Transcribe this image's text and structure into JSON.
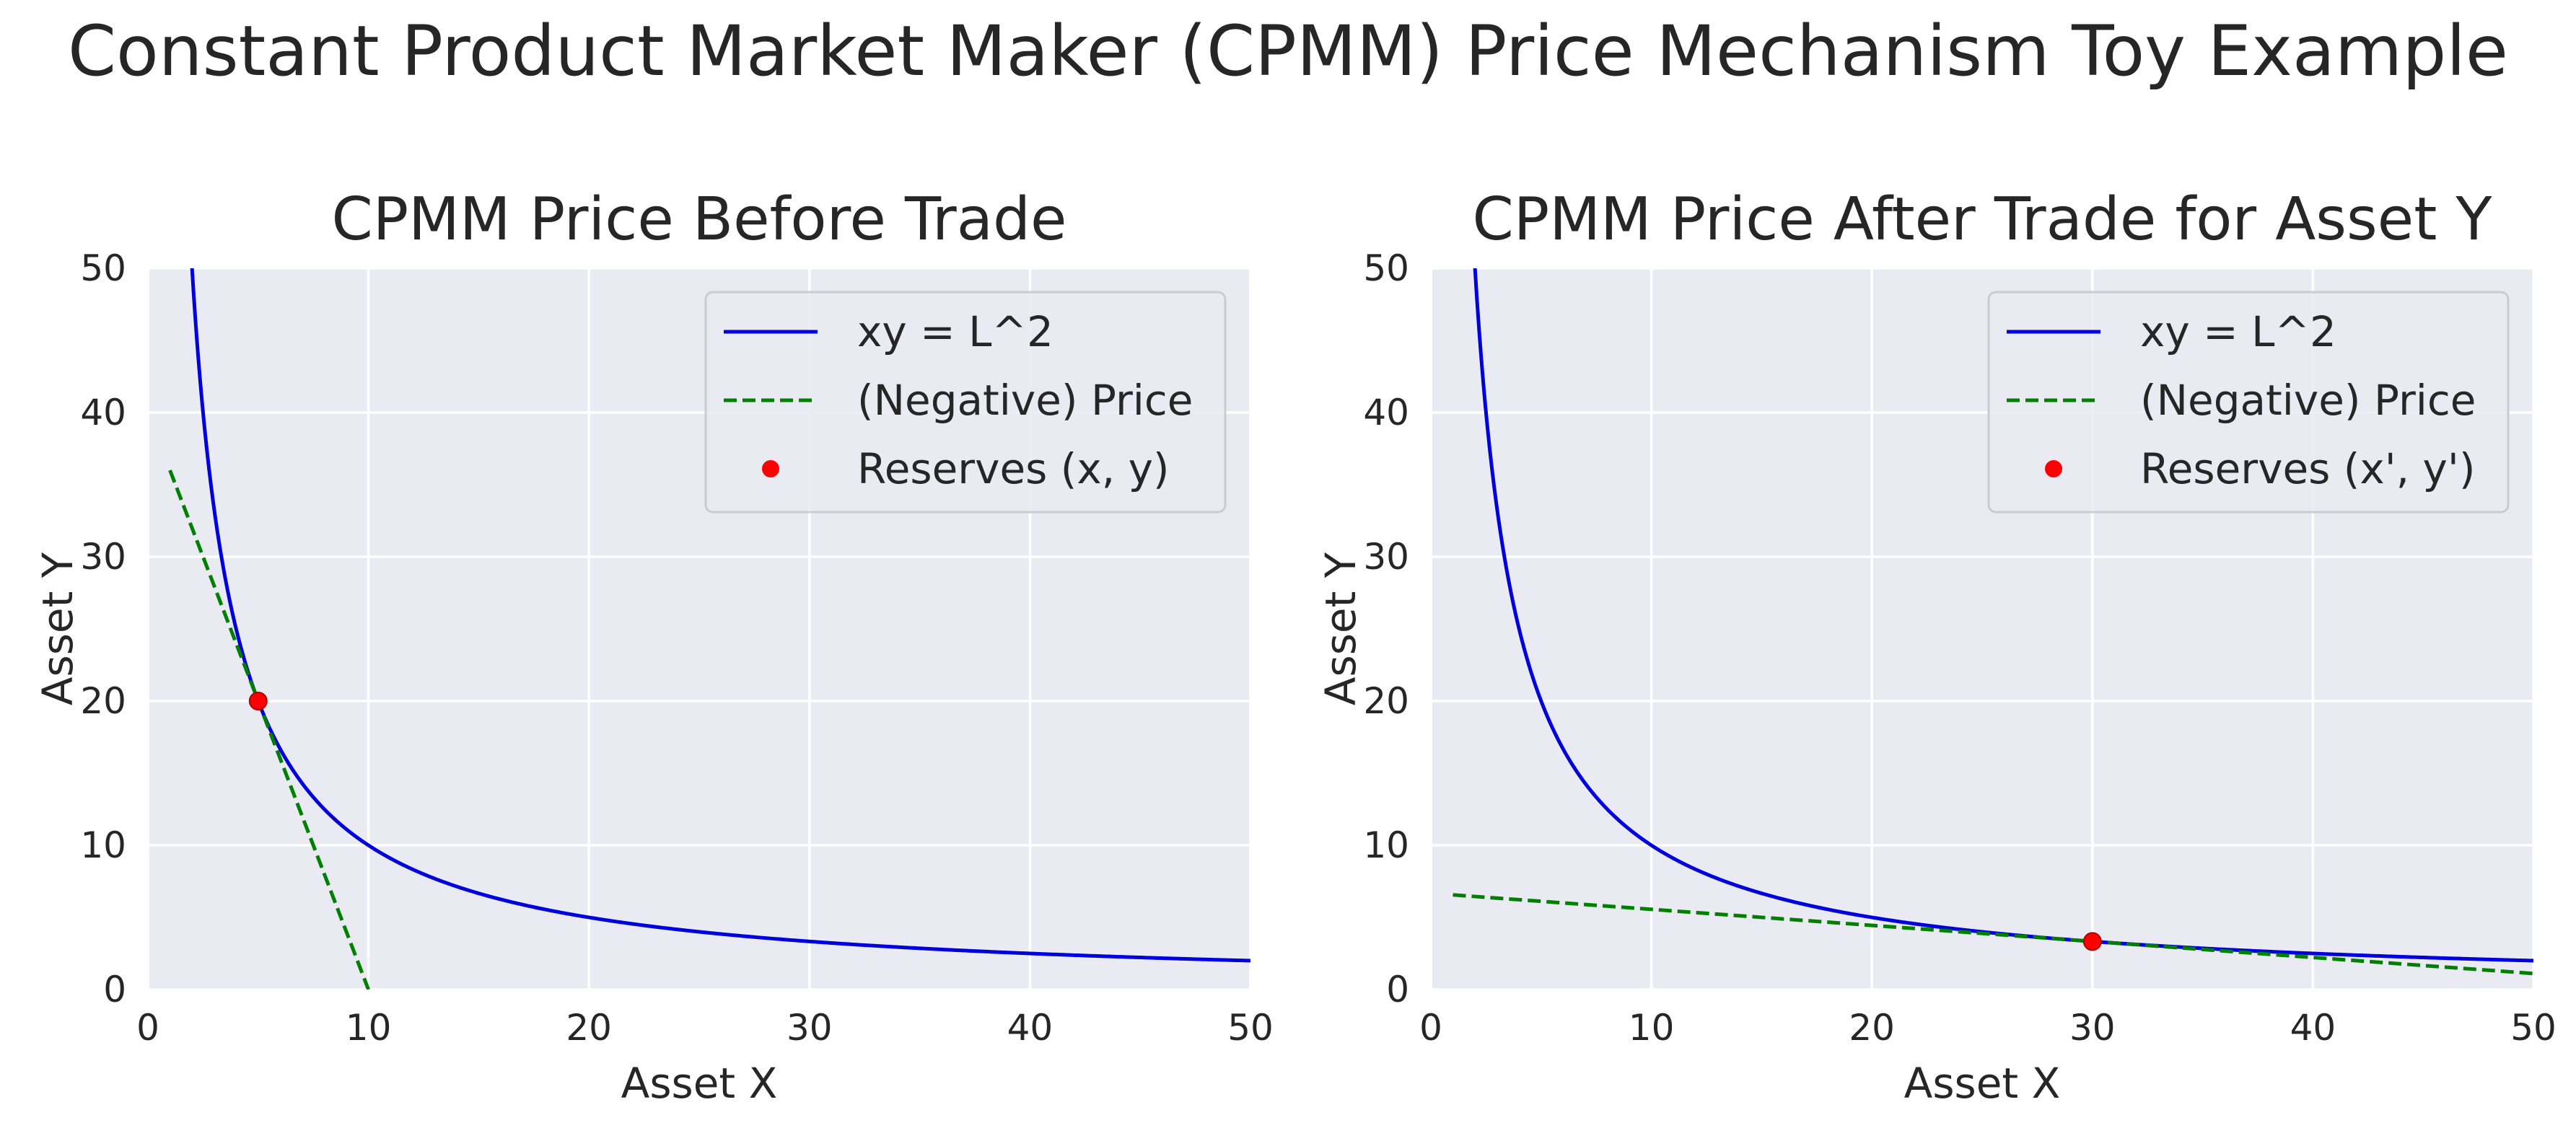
{
  "figure": {
    "suptitle": "Constant Product Market Maker (CPMM) Price Mechanism Toy Example",
    "colors": {
      "background": "#ffffff",
      "axes_face": "#eaeaf2",
      "grid": "#ffffff",
      "curve": "#0000dd",
      "price_line": "#008000",
      "reserve_point": "#ff0000",
      "text": "#262626"
    }
  },
  "chart_data": [
    {
      "type": "line",
      "title": "CPMM Price Before Trade",
      "xlabel": "Asset X",
      "ylabel": "Asset Y",
      "xlim": [
        0,
        50
      ],
      "ylim": [
        0,
        50
      ],
      "xticks": [
        0,
        10,
        20,
        30,
        40,
        50
      ],
      "yticks": [
        0,
        10,
        20,
        30,
        40,
        50
      ],
      "grid": true,
      "legend": {
        "placement": "upper-right",
        "entries": [
          "xy = L^2",
          "(Negative) Price",
          "Reserves (x, y)"
        ]
      },
      "series": [
        {
          "name": "xy = L^2",
          "kind": "curve",
          "equation": "x*y = 100",
          "k": 100,
          "x_range": [
            1,
            50
          ],
          "style": "solid",
          "color": "#0000dd"
        },
        {
          "name": "(Negative) Price",
          "kind": "line",
          "points": [
            [
              1,
              36
            ],
            [
              10,
              0
            ]
          ],
          "slope": -4,
          "style": "dashed",
          "color": "#008000"
        },
        {
          "name": "Reserves (x, y)",
          "kind": "scatter",
          "points": [
            [
              5,
              20
            ]
          ],
          "color": "#ff0000"
        }
      ]
    },
    {
      "type": "line",
      "title": "CPMM Price After Trade for Asset Y",
      "xlabel": "Asset X",
      "ylabel": "Asset Y",
      "xlim": [
        0,
        50
      ],
      "ylim": [
        0,
        50
      ],
      "xticks": [
        0,
        10,
        20,
        30,
        40,
        50
      ],
      "yticks": [
        0,
        10,
        20,
        30,
        40,
        50
      ],
      "grid": true,
      "legend": {
        "placement": "upper-right",
        "entries": [
          "xy = L^2",
          "(Negative) Price",
          "Reserves (x', y')"
        ]
      },
      "series": [
        {
          "name": "xy = L^2",
          "kind": "curve",
          "equation": "x*y = 100",
          "k": 100,
          "x_range": [
            1,
            50
          ],
          "style": "solid",
          "color": "#0000dd"
        },
        {
          "name": "(Negative) Price",
          "kind": "line",
          "points": [
            [
              1,
              6.56
            ],
            [
              50,
              1.11
            ]
          ],
          "slope": -0.111,
          "style": "dashed",
          "color": "#008000"
        },
        {
          "name": "Reserves (x', y')",
          "kind": "scatter",
          "points": [
            [
              30,
              3.33
            ]
          ],
          "color": "#ff0000"
        }
      ]
    }
  ]
}
